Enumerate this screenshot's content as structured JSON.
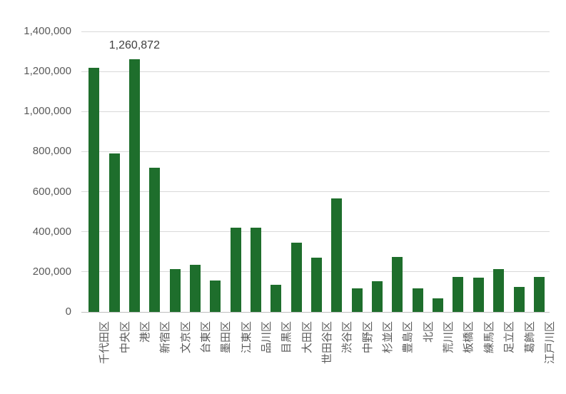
{
  "chart_data": {
    "type": "bar",
    "title": "",
    "xlabel": "",
    "ylabel": "",
    "categories": [
      "千代田区",
      "中央区",
      "港区",
      "新宿区",
      "文京区",
      "台東区",
      "墨田区",
      "江東区",
      "品川区",
      "目黒区",
      "大田区",
      "世田谷区",
      "渋谷区",
      "中野区",
      "杉並区",
      "豊島区",
      "北区",
      "荒川区",
      "板橋区",
      "練馬区",
      "足立区",
      "葛飾区",
      "江戸川区"
    ],
    "values": [
      1220000,
      790000,
      1260872,
      720000,
      212000,
      235000,
      158000,
      420000,
      420000,
      135000,
      346000,
      272000,
      565000,
      117000,
      152000,
      273000,
      117000,
      66000,
      176000,
      170000,
      213000,
      126000,
      175000
    ],
    "ylim": [
      0,
      1400000
    ],
    "y_ticks": [
      0,
      200000,
      400000,
      600000,
      800000,
      1000000,
      1200000,
      1400000
    ],
    "y_tick_labels": [
      "0",
      "200,000",
      "400,000",
      "600,000",
      "800,000",
      "1,000,000",
      "1,200,000",
      "1,400,000"
    ],
    "grid": true,
    "legend": false,
    "annotations": [
      {
        "category": "港区",
        "value": 1260872,
        "text": "1,260,872"
      }
    ],
    "colors": {
      "bar": "#1e6e2c",
      "gridline": "#d9d9d9",
      "axis_line": "#bfbfbf",
      "axis_text": "#595959",
      "data_label": "#404040",
      "background": "#ffffff"
    }
  }
}
